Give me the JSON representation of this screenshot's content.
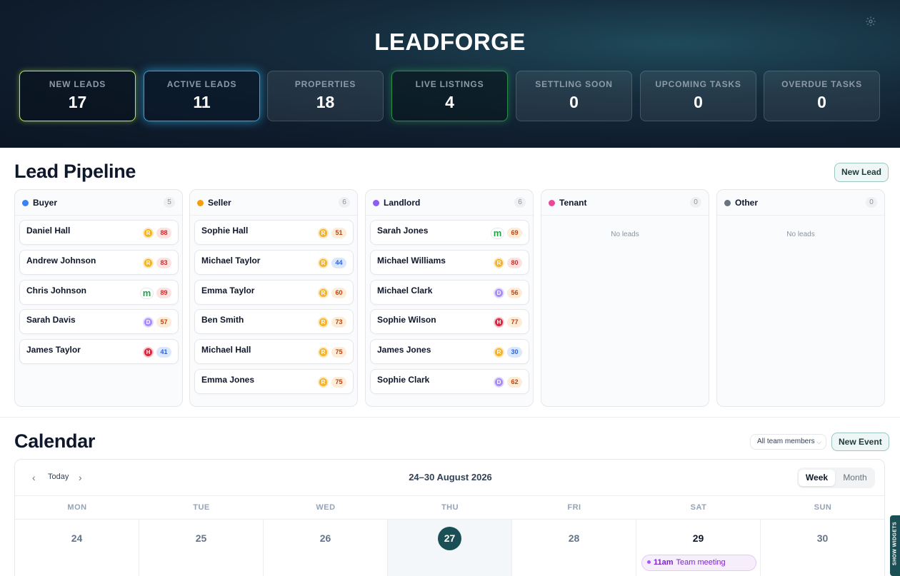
{
  "brand": "LEADFORGE",
  "stats": [
    {
      "label": "NEW LEADS",
      "value": "17"
    },
    {
      "label": "ACTIVE LEADS",
      "value": "11"
    },
    {
      "label": "PROPERTIES",
      "value": "18"
    },
    {
      "label": "LIVE LISTINGS",
      "value": "4"
    },
    {
      "label": "SETTLING SOON",
      "value": "0"
    },
    {
      "label": "UPCOMING TASKS",
      "value": "0"
    },
    {
      "label": "OVERDUE TASKS",
      "value": "0"
    }
  ],
  "pipeline": {
    "title": "Lead Pipeline",
    "new_lead_label": "New Lead",
    "empty_text": "No leads",
    "columns": [
      {
        "name": "Buyer",
        "count": "5",
        "color": "#3b82f6",
        "leads": [
          {
            "name": "Daniel Hall",
            "source": "R",
            "source_icon": "rea-icon",
            "score": "88"
          },
          {
            "name": "Andrew Johnson",
            "source": "R",
            "source_icon": "rea-icon",
            "score": "83"
          },
          {
            "name": "Chris Johnson",
            "source": "m",
            "source_icon": "m-logo-icon",
            "score": "89"
          },
          {
            "name": "Sarah Davis",
            "source": "D",
            "source_icon": "domain-icon",
            "score": "57"
          },
          {
            "name": "James Taylor",
            "source": "H",
            "source_icon": "home-icon",
            "score": "41"
          }
        ]
      },
      {
        "name": "Seller",
        "count": "6",
        "color": "#f59e0b",
        "leads": [
          {
            "name": "Sophie Hall",
            "source": "R",
            "source_icon": "rea-icon",
            "score": "51"
          },
          {
            "name": "Michael Taylor",
            "source": "R",
            "source_icon": "rea-icon",
            "score": "44"
          },
          {
            "name": "Emma Taylor",
            "source": "R",
            "source_icon": "rea-icon",
            "score": "60"
          },
          {
            "name": "Ben Smith",
            "source": "R",
            "source_icon": "rea-icon",
            "score": "73"
          },
          {
            "name": "Michael Hall",
            "source": "R",
            "source_icon": "rea-icon",
            "score": "75"
          },
          {
            "name": "Emma Jones",
            "source": "R",
            "source_icon": "rea-icon",
            "score": "75"
          }
        ]
      },
      {
        "name": "Landlord",
        "count": "6",
        "color": "#8b5cf6",
        "leads": [
          {
            "name": "Sarah Jones",
            "source": "m",
            "source_icon": "m-logo-icon",
            "score": "69"
          },
          {
            "name": "Michael Williams",
            "source": "R",
            "source_icon": "rea-icon",
            "score": "80"
          },
          {
            "name": "Michael Clark",
            "source": "D",
            "source_icon": "domain-icon",
            "score": "56"
          },
          {
            "name": "Sophie Wilson",
            "source": "H",
            "source_icon": "home-icon",
            "score": "77"
          },
          {
            "name": "James Jones",
            "source": "R",
            "source_icon": "rea-icon",
            "score": "30"
          },
          {
            "name": "Sophie Clark",
            "source": "D",
            "source_icon": "domain-icon",
            "score": "62"
          }
        ]
      },
      {
        "name": "Tenant",
        "count": "0",
        "color": "#ec4899",
        "leads": []
      },
      {
        "name": "Other",
        "count": "0",
        "color": "#6b7280",
        "leads": []
      }
    ]
  },
  "calendar": {
    "title": "Calendar",
    "team_filter": "All team members",
    "new_event_label": "New Event",
    "today_label": "Today",
    "range": "24–30 August 2026",
    "view_week": "Week",
    "view_month": "Month",
    "days": [
      {
        "dow": "MON",
        "num": "24"
      },
      {
        "dow": "TUE",
        "num": "25"
      },
      {
        "dow": "WED",
        "num": "26"
      },
      {
        "dow": "THU",
        "num": "27"
      },
      {
        "dow": "FRI",
        "num": "28"
      },
      {
        "dow": "SAT",
        "num": "29"
      },
      {
        "dow": "SUN",
        "num": "30"
      }
    ],
    "event": {
      "time": "11am",
      "title": "Team meeting"
    }
  },
  "show_widgets": "SHOW WIDGETS"
}
